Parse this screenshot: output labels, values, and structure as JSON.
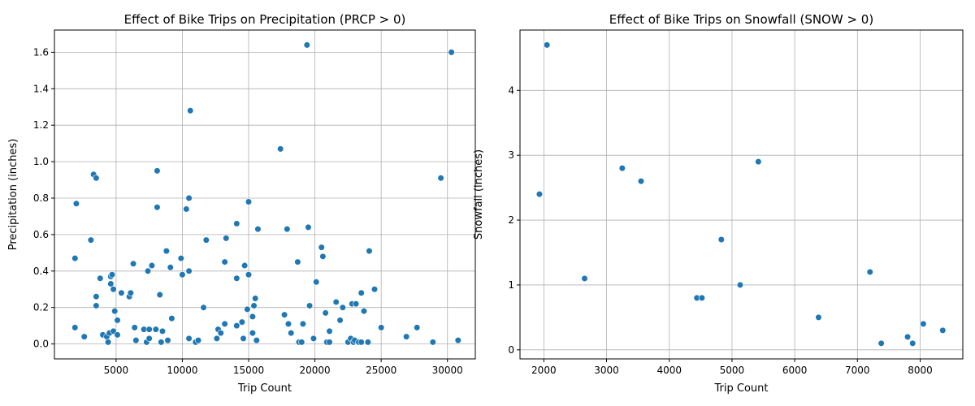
{
  "chart_data": [
    {
      "type": "scatter",
      "title": "Effect of Bike Trips on Precipitation (PRCP > 0)",
      "xlabel": "Trip Count",
      "ylabel": "Precipitation (inches)",
      "xlim": [
        350,
        32100
      ],
      "ylim": [
        -0.082,
        1.722
      ],
      "xticks": [
        5000,
        10000,
        15000,
        20000,
        25000,
        30000
      ],
      "yticks": [
        0.0,
        0.2,
        0.4,
        0.6,
        0.8,
        1.0,
        1.2,
        1.4,
        1.6
      ],
      "grid": true,
      "color": "#1f77b4",
      "points": [
        [
          1900,
          0.47
        ],
        [
          2000,
          0.77
        ],
        [
          1900,
          0.09
        ],
        [
          2600,
          0.04
        ],
        [
          3100,
          0.57
        ],
        [
          3300,
          0.93
        ],
        [
          3500,
          0.91
        ],
        [
          3500,
          0.26
        ],
        [
          3500,
          0.21
        ],
        [
          3800,
          0.36
        ],
        [
          4000,
          0.05
        ],
        [
          4300,
          0.04
        ],
        [
          4400,
          0.01
        ],
        [
          4500,
          0.06
        ],
        [
          4600,
          0.37
        ],
        [
          4700,
          0.38
        ],
        [
          4600,
          0.33
        ],
        [
          4800,
          0.3
        ],
        [
          4900,
          0.18
        ],
        [
          4800,
          0.07
        ],
        [
          5100,
          0.05
        ],
        [
          5100,
          0.13
        ],
        [
          5400,
          0.28
        ],
        [
          6000,
          0.26
        ],
        [
          6100,
          0.28
        ],
        [
          6300,
          0.44
        ],
        [
          6400,
          0.09
        ],
        [
          6500,
          0.02
        ],
        [
          7100,
          0.08
        ],
        [
          7300,
          0.01
        ],
        [
          7400,
          0.4
        ],
        [
          7500,
          0.08
        ],
        [
          7500,
          0.03
        ],
        [
          7700,
          0.43
        ],
        [
          8000,
          0.08
        ],
        [
          8100,
          0.95
        ],
        [
          8100,
          0.75
        ],
        [
          8300,
          0.27
        ],
        [
          8400,
          0.01
        ],
        [
          8500,
          0.07
        ],
        [
          8800,
          0.51
        ],
        [
          8900,
          0.02
        ],
        [
          9100,
          0.42
        ],
        [
          9200,
          0.14
        ],
        [
          9900,
          0.47
        ],
        [
          10000,
          0.38
        ],
        [
          10300,
          0.74
        ],
        [
          10500,
          0.8
        ],
        [
          10500,
          0.4
        ],
        [
          10600,
          1.28
        ],
        [
          10500,
          0.03
        ],
        [
          11000,
          0.01
        ],
        [
          11200,
          0.02
        ],
        [
          11600,
          0.2
        ],
        [
          11800,
          0.57
        ],
        [
          12600,
          0.03
        ],
        [
          12700,
          0.08
        ],
        [
          12900,
          0.06
        ],
        [
          13200,
          0.11
        ],
        [
          13200,
          0.45
        ],
        [
          13300,
          0.58
        ],
        [
          14100,
          0.66
        ],
        [
          14100,
          0.36
        ],
        [
          14100,
          0.1
        ],
        [
          14500,
          0.12
        ],
        [
          14600,
          0.03
        ],
        [
          14700,
          0.43
        ],
        [
          14900,
          0.19
        ],
        [
          15000,
          0.78
        ],
        [
          15000,
          0.38
        ],
        [
          15300,
          0.15
        ],
        [
          15300,
          0.06
        ],
        [
          15400,
          0.21
        ],
        [
          15500,
          0.25
        ],
        [
          15600,
          0.02
        ],
        [
          15700,
          0.63
        ],
        [
          17400,
          1.07
        ],
        [
          17700,
          0.16
        ],
        [
          17900,
          0.63
        ],
        [
          18000,
          0.11
        ],
        [
          18200,
          0.06
        ],
        [
          18700,
          0.45
        ],
        [
          18800,
          0.01
        ],
        [
          19000,
          0.01
        ],
        [
          19100,
          0.11
        ],
        [
          19400,
          1.64
        ],
        [
          19500,
          0.64
        ],
        [
          19600,
          0.21
        ],
        [
          19900,
          0.03
        ],
        [
          20100,
          0.34
        ],
        [
          20500,
          0.53
        ],
        [
          20600,
          0.48
        ],
        [
          20800,
          0.17
        ],
        [
          20900,
          0.01
        ],
        [
          21100,
          0.01
        ],
        [
          21100,
          0.07
        ],
        [
          21600,
          0.23
        ],
        [
          21900,
          0.13
        ],
        [
          22100,
          0.2
        ],
        [
          22500,
          0.01
        ],
        [
          22700,
          0.03
        ],
        [
          22800,
          0.22
        ],
        [
          22900,
          0.01
        ],
        [
          23000,
          0.02
        ],
        [
          23100,
          0.22
        ],
        [
          23300,
          0.01
        ],
        [
          23500,
          0.28
        ],
        [
          23500,
          0.01
        ],
        [
          23700,
          0.18
        ],
        [
          24000,
          0.01
        ],
        [
          24100,
          0.51
        ],
        [
          24500,
          0.3
        ],
        [
          25000,
          0.09
        ],
        [
          26900,
          0.04
        ],
        [
          27700,
          0.09
        ],
        [
          28900,
          0.01
        ],
        [
          29500,
          0.91
        ],
        [
          30300,
          1.6
        ],
        [
          30800,
          0.02
        ]
      ]
    },
    {
      "type": "scatter",
      "title": "Effect of Bike Trips on Snowfall (SNOW > 0)",
      "xlabel": "Trip Count",
      "ylabel": "Snowfall (inches)",
      "xlim": [
        1620,
        8680
      ],
      "ylim": [
        -0.14,
        4.93
      ],
      "xticks": [
        2000,
        3000,
        4000,
        5000,
        6000,
        7000,
        8000
      ],
      "yticks": [
        0,
        1,
        2,
        3,
        4
      ],
      "grid": true,
      "color": "#1f77b4",
      "points": [
        [
          1930,
          2.4
        ],
        [
          2050,
          4.7
        ],
        [
          2650,
          1.1
        ],
        [
          3250,
          2.8
        ],
        [
          3550,
          2.6
        ],
        [
          4440,
          0.8
        ],
        [
          4520,
          0.8
        ],
        [
          4830,
          1.7
        ],
        [
          5130,
          1.0
        ],
        [
          5420,
          2.9
        ],
        [
          6380,
          0.5
        ],
        [
          7200,
          1.2
        ],
        [
          7380,
          0.1
        ],
        [
          7800,
          0.2
        ],
        [
          7880,
          0.1
        ],
        [
          8050,
          0.4
        ],
        [
          8360,
          0.3
        ]
      ]
    }
  ]
}
